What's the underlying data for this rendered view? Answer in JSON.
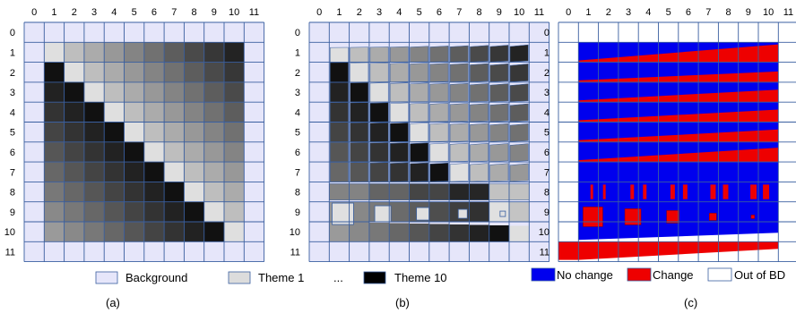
{
  "panels": [
    {
      "id": "a",
      "caption": "(a)"
    },
    {
      "id": "b",
      "caption": "(b)"
    },
    {
      "id": "c",
      "caption": "(c)"
    }
  ],
  "ticks": [
    "0",
    "1",
    "2",
    "3",
    "4",
    "5",
    "6",
    "7",
    "8",
    "9",
    "10",
    "11"
  ],
  "legend_themes": {
    "items": [
      {
        "label": "Background",
        "color": "#e6e6fa"
      },
      {
        "label": "Theme 1",
        "color": "#dcdcdc"
      },
      {
        "label": "Theme 10",
        "color": "#000000"
      }
    ],
    "ellipsis": "..."
  },
  "legend_change": {
    "items": [
      {
        "label": "No change",
        "color": "#0000ee"
      },
      {
        "label": "Change",
        "color": "#ee0000"
      },
      {
        "label": "Out of BD",
        "color": "#ffffff"
      }
    ]
  },
  "colors": {
    "grid_line": "#3a5fa0",
    "background": "#e6e6fa",
    "no_change": "#0000ee",
    "change": "#ee0000"
  }
}
